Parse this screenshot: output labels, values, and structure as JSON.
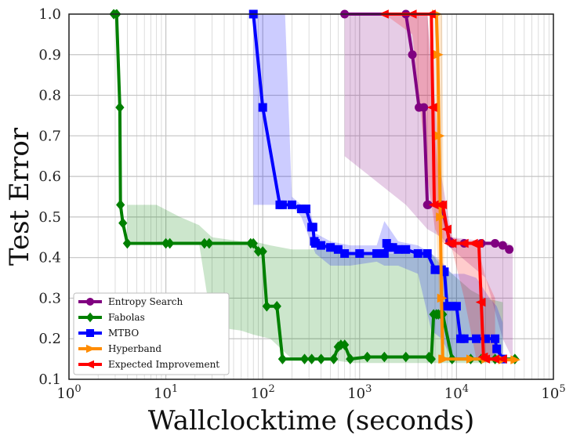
{
  "chart_data": {
    "type": "line",
    "xlabel": "Wallclocktime (seconds)",
    "ylabel": "Test Error",
    "x_scale": "log",
    "xlim": [
      1,
      100000
    ],
    "ylim": [
      0.1,
      1.0
    ],
    "x_ticks": [
      1,
      10,
      100,
      1000,
      10000,
      100000
    ],
    "x_tick_labels": [
      "10^0",
      "10^1",
      "10^2",
      "10^3",
      "10^4",
      "10^5"
    ],
    "y_ticks": [
      0.1,
      0.2,
      0.3,
      0.4,
      0.5,
      0.6,
      0.7,
      0.8,
      0.9,
      1.0
    ],
    "y_tick_labels": [
      "0.1",
      "0.2",
      "0.3",
      "0.4",
      "0.5",
      "0.6",
      "0.7",
      "0.8",
      "0.9",
      "1.0"
    ],
    "grid": true,
    "legend_position": "lower-left",
    "series": [
      {
        "name": "Entropy Search",
        "color": "#800080",
        "marker": "circle",
        "x": [
          700,
          3000,
          3500,
          4100,
          4600,
          5000,
          5100,
          7000,
          8500,
          9000,
          12000,
          18000,
          25000,
          30000,
          35000
        ],
        "y": [
          1.0,
          1.0,
          0.9,
          0.77,
          0.77,
          0.53,
          0.53,
          0.53,
          0.44,
          0.435,
          0.435,
          0.435,
          0.435,
          0.43,
          0.42
        ],
        "band": {
          "x": [
            700,
            3000,
            5000,
            7000,
            9000,
            20000,
            30000,
            38000
          ],
          "upper": [
            1.0,
            1.0,
            1.0,
            0.6,
            0.45,
            0.44,
            0.44,
            0.43
          ],
          "lower": [
            0.65,
            0.53,
            0.47,
            0.45,
            0.42,
            0.35,
            0.2,
            0.15
          ]
        }
      },
      {
        "name": "Fabolas",
        "color": "#008000",
        "marker": "diamond",
        "x": [
          2.9,
          3.1,
          3.35,
          3.4,
          3.6,
          4,
          10,
          11,
          25,
          28,
          75,
          80,
          90,
          100,
          110,
          140,
          160,
          270,
          320,
          400,
          540,
          600,
          640,
          700,
          800,
          1200,
          1800,
          3000,
          5200,
          5500,
          5800,
          6200,
          6500,
          6900,
          7200,
          9000,
          14000,
          18000,
          25000,
          40000
        ],
        "y": [
          1.0,
          1.0,
          0.77,
          0.53,
          0.485,
          0.435,
          0.435,
          0.435,
          0.435,
          0.435,
          0.435,
          0.435,
          0.415,
          0.415,
          0.28,
          0.28,
          0.15,
          0.15,
          0.15,
          0.15,
          0.15,
          0.18,
          0.185,
          0.185,
          0.15,
          0.155,
          0.155,
          0.155,
          0.155,
          0.15,
          0.26,
          0.26,
          0.26,
          0.26,
          0.26,
          0.15,
          0.15,
          0.15,
          0.15,
          0.15
        ],
        "band": {
          "x": [
            4,
            8,
            14,
            22,
            30,
            60,
            80,
            120,
            200,
            400,
            900,
            2000,
            5500,
            7000,
            9000,
            14000,
            20000,
            30000
          ],
          "upper": [
            0.53,
            0.53,
            0.5,
            0.48,
            0.45,
            0.44,
            0.44,
            0.43,
            0.42,
            0.42,
            0.41,
            0.41,
            0.41,
            0.38,
            0.36,
            0.32,
            0.3,
            0.29
          ],
          "lower": [
            0.44,
            0.44,
            0.435,
            0.435,
            0.23,
            0.22,
            0.21,
            0.2,
            0.15,
            0.15,
            0.14,
            0.14,
            0.14,
            0.14,
            0.14,
            0.14,
            0.14,
            0.14
          ]
        }
      },
      {
        "name": "MTBO",
        "color": "#0000ff",
        "marker": "square",
        "x": [
          80,
          100,
          150,
          160,
          200,
          250,
          280,
          320,
          330,
          340,
          350,
          400,
          500,
          600,
          700,
          1000,
          1500,
          1800,
          1900,
          2000,
          2200,
          2500,
          3000,
          4000,
          5000,
          6000,
          7000,
          7500,
          8000,
          9000,
          10000,
          11000,
          12000,
          16000,
          20000,
          25000,
          26000,
          30000
        ],
        "y": [
          1.0,
          0.77,
          0.53,
          0.53,
          0.53,
          0.52,
          0.52,
          0.475,
          0.475,
          0.44,
          0.435,
          0.43,
          0.425,
          0.42,
          0.41,
          0.41,
          0.41,
          0.41,
          0.435,
          0.425,
          0.425,
          0.42,
          0.42,
          0.41,
          0.41,
          0.37,
          0.37,
          0.365,
          0.28,
          0.28,
          0.28,
          0.2,
          0.2,
          0.2,
          0.2,
          0.2,
          0.175,
          0.15
        ],
        "band": {
          "x": [
            80,
            100,
            150,
            170,
            200,
            250,
            300,
            350,
            500,
            800,
            1500,
            1800,
            2500,
            4000,
            5500,
            7000,
            9000,
            12000,
            16000,
            22000,
            26000,
            30000
          ],
          "upper": [
            1.0,
            1.0,
            1.0,
            1.0,
            0.55,
            0.53,
            0.53,
            0.46,
            0.44,
            0.43,
            0.43,
            0.49,
            0.44,
            0.43,
            0.41,
            0.39,
            0.36,
            0.36,
            0.35,
            0.3,
            0.28,
            0.24
          ],
          "lower": [
            0.53,
            0.53,
            0.53,
            0.53,
            0.53,
            0.5,
            0.45,
            0.41,
            0.38,
            0.38,
            0.39,
            0.38,
            0.38,
            0.36,
            0.22,
            0.2,
            0.15,
            0.15,
            0.15,
            0.15,
            0.15,
            0.15
          ]
        }
      },
      {
        "name": "Hyperband",
        "color": "#ff8c00",
        "marker": "triangle-right",
        "x": [
          6200,
          6400,
          6600,
          6800,
          7000,
          7200,
          7400,
          14000,
          20000,
          30000,
          40000
        ],
        "y": [
          1.0,
          0.9,
          0.7,
          0.5,
          0.3,
          0.15,
          0.15,
          0.15,
          0.15,
          0.148,
          0.148
        ],
        "band": {
          "x": [
            6100,
            6600,
            7100,
            7500
          ],
          "upper": [
            1.0,
            1.0,
            1.0,
            0.3
          ],
          "lower": [
            0.5,
            0.3,
            0.15,
            0.15
          ]
        }
      },
      {
        "name": "Expected Improvement",
        "color": "#ff0000",
        "marker": "triangle-left",
        "x": [
          1800,
          3500,
          5500,
          5700,
          5900,
          6800,
          7200,
          8000,
          8500,
          9000,
          12000,
          15000,
          17000,
          18000,
          19000,
          20000,
          25000,
          30000
        ],
        "y": [
          1.0,
          1.0,
          1.0,
          0.77,
          0.53,
          0.53,
          0.53,
          0.47,
          0.435,
          0.435,
          0.435,
          0.435,
          0.435,
          0.29,
          0.155,
          0.15,
          0.15,
          0.15
        ],
        "band": {
          "x": [
            1800,
            3500,
            5000,
            6000,
            7000,
            9000,
            12000,
            16000,
            20000,
            25000
          ],
          "upper": [
            1.0,
            1.0,
            1.0,
            0.7,
            0.53,
            0.45,
            0.44,
            0.44,
            0.35,
            0.3
          ],
          "lower": [
            1.0,
            0.95,
            0.6,
            0.47,
            0.44,
            0.42,
            0.3,
            0.15,
            0.15,
            0.15
          ]
        }
      }
    ]
  }
}
